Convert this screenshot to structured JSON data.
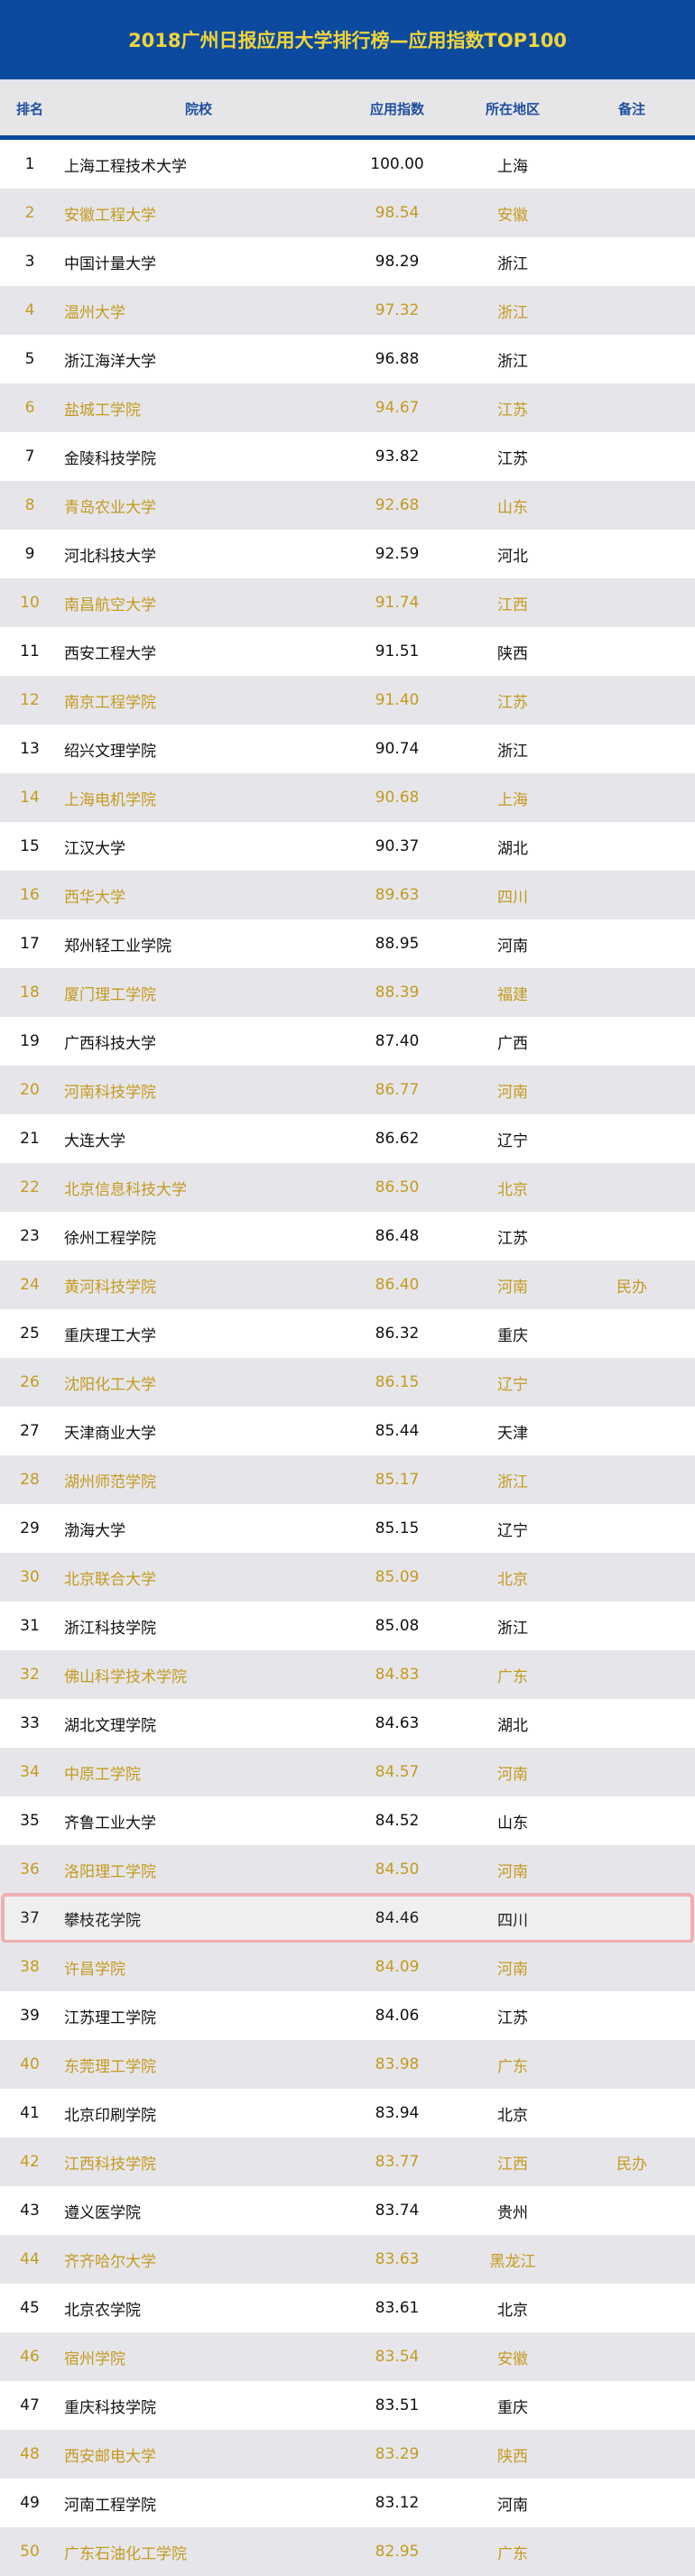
{
  "title": "2018广州日报应用大学排行榜—应用指数TOP100",
  "colors": {
    "title_bg": "#0b4a9e",
    "title_text": "#f0d43a",
    "header_text": "#1f4ea0",
    "alt_text": "#c49a1e",
    "highlight_border": "#f0aeb2"
  },
  "columns": {
    "rank": "排名",
    "school": "院校",
    "score": "应用指数",
    "region": "所在地区",
    "note": "备注"
  },
  "highlighted_rank": "37",
  "rows": [
    {
      "rank": "1",
      "school": "上海工程技术大学",
      "score": "100.00",
      "region": "上海",
      "note": ""
    },
    {
      "rank": "2",
      "school": "安徽工程大学",
      "score": "98.54",
      "region": "安徽",
      "note": ""
    },
    {
      "rank": "3",
      "school": "中国计量大学",
      "score": "98.29",
      "region": "浙江",
      "note": ""
    },
    {
      "rank": "4",
      "school": "温州大学",
      "score": "97.32",
      "region": "浙江",
      "note": ""
    },
    {
      "rank": "5",
      "school": "浙江海洋大学",
      "score": "96.88",
      "region": "浙江",
      "note": ""
    },
    {
      "rank": "6",
      "school": "盐城工学院",
      "score": "94.67",
      "region": "江苏",
      "note": ""
    },
    {
      "rank": "7",
      "school": "金陵科技学院",
      "score": "93.82",
      "region": "江苏",
      "note": ""
    },
    {
      "rank": "8",
      "school": "青岛农业大学",
      "score": "92.68",
      "region": "山东",
      "note": ""
    },
    {
      "rank": "9",
      "school": "河北科技大学",
      "score": "92.59",
      "region": "河北",
      "note": ""
    },
    {
      "rank": "10",
      "school": "南昌航空大学",
      "score": "91.74",
      "region": "江西",
      "note": ""
    },
    {
      "rank": "11",
      "school": "西安工程大学",
      "score": "91.51",
      "region": "陕西",
      "note": ""
    },
    {
      "rank": "12",
      "school": "南京工程学院",
      "score": "91.40",
      "region": "江苏",
      "note": ""
    },
    {
      "rank": "13",
      "school": "绍兴文理学院",
      "score": "90.74",
      "region": "浙江",
      "note": ""
    },
    {
      "rank": "14",
      "school": "上海电机学院",
      "score": "90.68",
      "region": "上海",
      "note": ""
    },
    {
      "rank": "15",
      "school": "江汉大学",
      "score": "90.37",
      "region": "湖北",
      "note": ""
    },
    {
      "rank": "16",
      "school": "西华大学",
      "score": "89.63",
      "region": "四川",
      "note": ""
    },
    {
      "rank": "17",
      "school": "郑州轻工业学院",
      "score": "88.95",
      "region": "河南",
      "note": ""
    },
    {
      "rank": "18",
      "school": "厦门理工学院",
      "score": "88.39",
      "region": "福建",
      "note": ""
    },
    {
      "rank": "19",
      "school": "广西科技大学",
      "score": "87.40",
      "region": "广西",
      "note": ""
    },
    {
      "rank": "20",
      "school": "河南科技学院",
      "score": "86.77",
      "region": "河南",
      "note": ""
    },
    {
      "rank": "21",
      "school": "大连大学",
      "score": "86.62",
      "region": "辽宁",
      "note": ""
    },
    {
      "rank": "22",
      "school": "北京信息科技大学",
      "score": "86.50",
      "region": "北京",
      "note": ""
    },
    {
      "rank": "23",
      "school": "徐州工程学院",
      "score": "86.48",
      "region": "江苏",
      "note": ""
    },
    {
      "rank": "24",
      "school": "黄河科技学院",
      "score": "86.40",
      "region": "河南",
      "note": "民办"
    },
    {
      "rank": "25",
      "school": "重庆理工大学",
      "score": "86.32",
      "region": "重庆",
      "note": ""
    },
    {
      "rank": "26",
      "school": "沈阳化工大学",
      "score": "86.15",
      "region": "辽宁",
      "note": ""
    },
    {
      "rank": "27",
      "school": "天津商业大学",
      "score": "85.44",
      "region": "天津",
      "note": ""
    },
    {
      "rank": "28",
      "school": "湖州师范学院",
      "score": "85.17",
      "region": "浙江",
      "note": ""
    },
    {
      "rank": "29",
      "school": "渤海大学",
      "score": "85.15",
      "region": "辽宁",
      "note": ""
    },
    {
      "rank": "30",
      "school": "北京联合大学",
      "score": "85.09",
      "region": "北京",
      "note": ""
    },
    {
      "rank": "31",
      "school": "浙江科技学院",
      "score": "85.08",
      "region": "浙江",
      "note": ""
    },
    {
      "rank": "32",
      "school": "佛山科学技术学院",
      "score": "84.83",
      "region": "广东",
      "note": ""
    },
    {
      "rank": "33",
      "school": "湖北文理学院",
      "score": "84.63",
      "region": "湖北",
      "note": ""
    },
    {
      "rank": "34",
      "school": "中原工学院",
      "score": "84.57",
      "region": "河南",
      "note": ""
    },
    {
      "rank": "35",
      "school": "齐鲁工业大学",
      "score": "84.52",
      "region": "山东",
      "note": ""
    },
    {
      "rank": "36",
      "school": "洛阳理工学院",
      "score": "84.50",
      "region": "河南",
      "note": ""
    },
    {
      "rank": "37",
      "school": "攀枝花学院",
      "score": "84.46",
      "region": "四川",
      "note": ""
    },
    {
      "rank": "38",
      "school": "许昌学院",
      "score": "84.09",
      "region": "河南",
      "note": ""
    },
    {
      "rank": "39",
      "school": "江苏理工学院",
      "score": "84.06",
      "region": "江苏",
      "note": ""
    },
    {
      "rank": "40",
      "school": "东莞理工学院",
      "score": "83.98",
      "region": "广东",
      "note": ""
    },
    {
      "rank": "41",
      "school": "北京印刷学院",
      "score": "83.94",
      "region": "北京",
      "note": ""
    },
    {
      "rank": "42",
      "school": "江西科技学院",
      "score": "83.77",
      "region": "江西",
      "note": "民办"
    },
    {
      "rank": "43",
      "school": "遵义医学院",
      "score": "83.74",
      "region": "贵州",
      "note": ""
    },
    {
      "rank": "44",
      "school": "齐齐哈尔大学",
      "score": "83.63",
      "region": "黑龙江",
      "note": ""
    },
    {
      "rank": "45",
      "school": "北京农学院",
      "score": "83.61",
      "region": "北京",
      "note": ""
    },
    {
      "rank": "46",
      "school": "宿州学院",
      "score": "83.54",
      "region": "安徽",
      "note": ""
    },
    {
      "rank": "47",
      "school": "重庆科技学院",
      "score": "83.51",
      "region": "重庆",
      "note": ""
    },
    {
      "rank": "48",
      "school": "西安邮电大学",
      "score": "83.29",
      "region": "陕西",
      "note": ""
    },
    {
      "rank": "49",
      "school": "河南工程学院",
      "score": "83.12",
      "region": "河南",
      "note": ""
    },
    {
      "rank": "50",
      "school": "广东石油化工学院",
      "score": "82.95",
      "region": "广东",
      "note": ""
    }
  ]
}
